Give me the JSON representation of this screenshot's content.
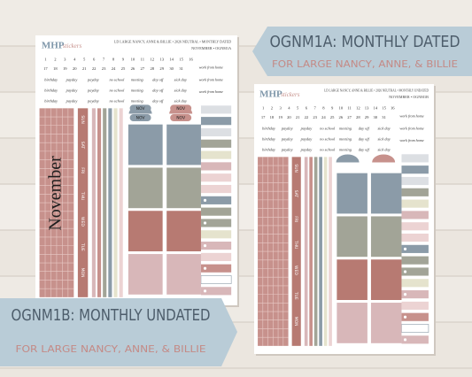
{
  "banners": [
    {
      "title": "OGNM1A: MONTHLY DATED",
      "subtitle": "FOR LARGE NANCY, ANNE, & BILLIE"
    },
    {
      "title": "OGNM1B: MONTHLY UNDATED",
      "subtitle": "FOR LARGE NANCY, ANNE, & BILLIE"
    }
  ],
  "sheets": [
    {
      "logo": "MHP",
      "logo_sub": "stickers",
      "header": "LD LARGE NANCY, ANNE & BILLIE • 2026 NEUTRAL • MONTHLY DATED",
      "subheader": "NOVEMBER • OGNM1A",
      "dates": [
        "1",
        "2",
        "3",
        "4",
        "5",
        "6",
        "7",
        "8",
        "9",
        "10",
        "11",
        "12",
        "13",
        "14",
        "15",
        "16",
        "17",
        "18",
        "19",
        "20",
        "21",
        "22",
        "23",
        "24",
        "25",
        "26",
        "27",
        "28",
        "29",
        "30",
        "31"
      ],
      "labels": [
        "birthday",
        "payday",
        "payday",
        "no school",
        "meeting",
        "day off",
        "sick day"
      ],
      "side_label": "work from home",
      "month": "November",
      "weekdays": [
        "SUN",
        "SAT",
        "FRI",
        "THU",
        "WED",
        "TUE",
        "MON"
      ],
      "month_tabs": [
        "NOV",
        "NOV",
        "NOV",
        "NOV"
      ]
    },
    {
      "logo": "MHP",
      "logo_sub": "stickers",
      "header": "LD LARGE NANCY, ANNE & BILLIE • 2026 NEUTRAL • MONTHLY UNDATED",
      "subheader": "NOVEMBER • OGNM1B",
      "dates": [
        "1",
        "2",
        "3",
        "4",
        "5",
        "6",
        "7",
        "8",
        "9",
        "10",
        "11",
        "12",
        "13",
        "14",
        "15",
        "16",
        "17",
        "18",
        "19",
        "20",
        "21",
        "22",
        "23",
        "24",
        "25",
        "26",
        "27",
        "28",
        "29",
        "30",
        "31"
      ],
      "labels": [
        "birthday",
        "payday",
        "payday",
        "no school",
        "meeting",
        "day off",
        "sick day"
      ],
      "side_label": "work from home",
      "weekdays": [
        "SUN",
        "SAT",
        "FRI",
        "THU",
        "WED",
        "TUE",
        "MON"
      ]
    }
  ]
}
